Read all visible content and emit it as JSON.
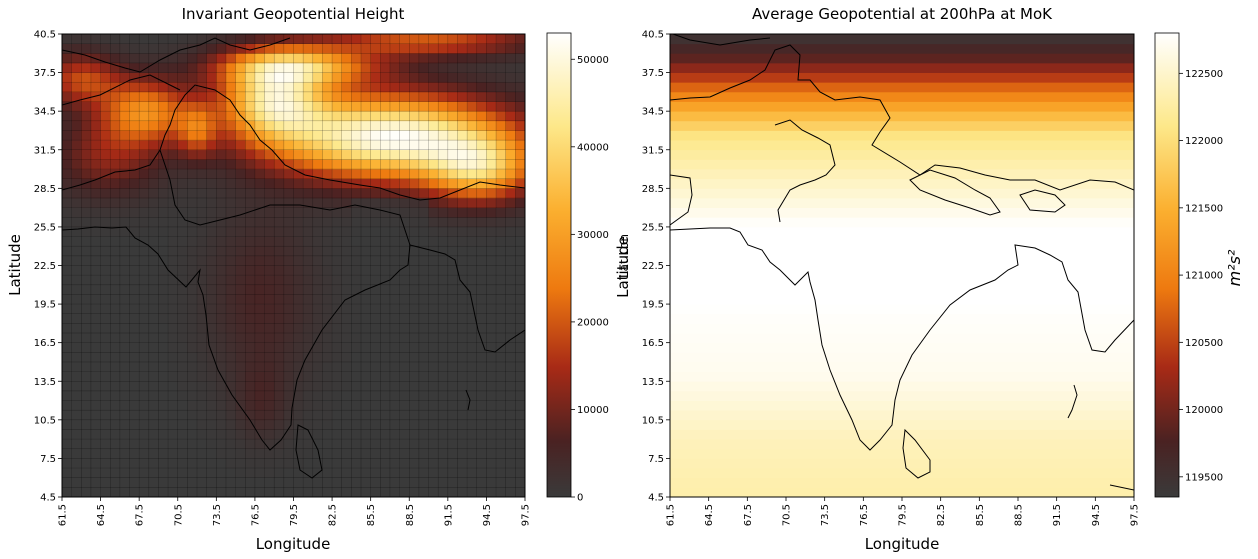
{
  "chart_data": [
    {
      "type": "heatmap",
      "title": "Invariant Geopotential Height",
      "xlabel": "Longitude",
      "ylabel": "Latitude",
      "xlim": [
        61.5,
        97.5
      ],
      "ylim": [
        4.5,
        40.5
      ],
      "x_ticks": [
        "61.5",
        "64.5",
        "67.5",
        "70.5",
        "73.5",
        "76.5",
        "79.5",
        "82.5",
        "85.5",
        "88.5",
        "91.5",
        "94.5",
        "97.5"
      ],
      "y_ticks": [
        "4.5",
        "7.5",
        "10.5",
        "13.5",
        "16.5",
        "19.5",
        "22.5",
        "25.5",
        "28.5",
        "31.5",
        "34.5",
        "37.5",
        "40.5"
      ],
      "colorbar": {
        "label": "",
        "range": [
          0,
          53000
        ],
        "ticks": [
          "0",
          "10000",
          "20000",
          "30000",
          "40000",
          "50000"
        ],
        "tick_values": [
          0,
          10000,
          20000,
          30000,
          40000,
          50000
        ],
        "colormap": "afmhot"
      },
      "grid_resolution_deg": 0.75,
      "grid_lines": true,
      "values_description_points": [
        {
          "lon": 86.0,
          "lat": 32.0,
          "value": 53000
        },
        {
          "lon": 80.0,
          "lat": 34.5,
          "value": 50000
        },
        {
          "lon": 93.0,
          "lat": 30.0,
          "value": 45000
        },
        {
          "lon": 68.0,
          "lat": 34.5,
          "value": 28000
        },
        {
          "lon": 76.0,
          "lat": 20.0,
          "value": 6000
        },
        {
          "lon": 85.0,
          "lat": 15.0,
          "value": 0
        }
      ]
    },
    {
      "type": "heatmap",
      "title": "Average Geopotential at 200hPa at MoK",
      "xlabel": "Longitude",
      "ylabel": "Latitude",
      "ylabel_overlap": "Lat Lon",
      "xlim": [
        61.5,
        97.5
      ],
      "ylim": [
        4.5,
        40.5
      ],
      "x_ticks": [
        "61.5",
        "64.5",
        "67.5",
        "70.5",
        "73.5",
        "76.5",
        "79.5",
        "82.5",
        "85.5",
        "88.5",
        "91.5",
        "94.5",
        "97.5"
      ],
      "y_ticks": [
        "4.5",
        "7.5",
        "10.5",
        "13.5",
        "16.5",
        "19.5",
        "22.5",
        "25.5",
        "28.5",
        "31.5",
        "34.5",
        "37.5",
        "40.5"
      ],
      "colorbar": {
        "label": "m²s²",
        "range": [
          119350,
          122800
        ],
        "ticks": [
          "119500",
          "120000",
          "120500",
          "121000",
          "121500",
          "122000",
          "122500"
        ],
        "tick_values": [
          119500,
          120000,
          120500,
          121000,
          121500,
          122000,
          122500
        ],
        "colormap": "afmhot"
      },
      "grid_resolution_deg": 0.75,
      "grid_lines": false,
      "lat_profile": [
        {
          "lat": 40.5,
          "value": 119400
        },
        {
          "lat": 38.5,
          "value": 119900
        },
        {
          "lat": 36.5,
          "value": 120700
        },
        {
          "lat": 34.5,
          "value": 121500
        },
        {
          "lat": 32.5,
          "value": 122100
        },
        {
          "lat": 29.5,
          "value": 122400
        },
        {
          "lat": 25.5,
          "value": 122800
        },
        {
          "lat": 20.0,
          "value": 122800
        },
        {
          "lat": 14.0,
          "value": 122700
        },
        {
          "lat": 9.0,
          "value": 122400
        },
        {
          "lat": 4.5,
          "value": 122300
        }
      ]
    }
  ]
}
